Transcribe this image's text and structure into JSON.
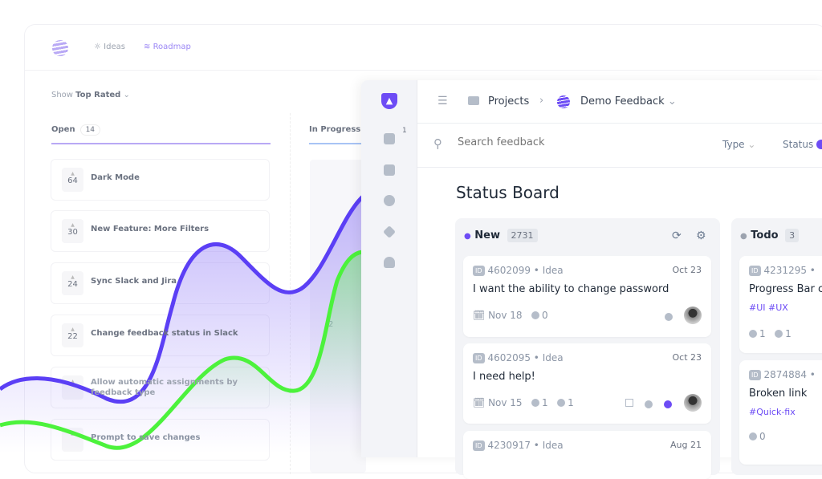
{
  "back_app": {
    "nav": [
      {
        "label": "Ideas",
        "icon": "lightbulb-icon"
      },
      {
        "label": "Roadmap",
        "icon": "roadmap-icon",
        "active": true
      }
    ],
    "show_label": "Show",
    "sort_value": "Top Rated",
    "columns": [
      {
        "label": "Open",
        "count": "14"
      },
      {
        "label": "In Progress"
      }
    ],
    "ideas": [
      {
        "votes": "64",
        "title": "Dark Mode"
      },
      {
        "votes": "30",
        "title": "New Feature: More Filters"
      },
      {
        "votes": "24",
        "title": "Sync Slack and Jira"
      },
      {
        "votes": "22",
        "title": "Change feedback status in Slack"
      },
      {
        "votes": "",
        "title": "Allow automatic assignments by feedback type"
      },
      {
        "votes": "",
        "title": "Prompt to save changes"
      }
    ],
    "in_progress_votes": "2"
  },
  "front_app": {
    "sidebar": {
      "inbox_badge": "1",
      "icons": [
        "logo-icon",
        "inbox-icon",
        "folder-icon",
        "play-icon",
        "layers-icon",
        "user-icon"
      ]
    },
    "breadcrumb": {
      "root": "Projects",
      "project": "Demo Feedback"
    },
    "search": {
      "placeholder": "Search feedback"
    },
    "filters": [
      "Type",
      "Status"
    ],
    "title": "Status Board",
    "columns": [
      {
        "label": "New",
        "count": "2731",
        "dot_color": "#6d4cf5",
        "cards": [
          {
            "id": "4602099",
            "type": "Idea",
            "date": "Oct 23",
            "title": "I want the ability to change password",
            "due": "Nov 18",
            "comments": "0"
          },
          {
            "id": "4602095",
            "type": "Idea",
            "date": "Oct 23",
            "title": "I need help!",
            "due": "Nov 15",
            "comments": "1",
            "votes": "1"
          },
          {
            "id": "4230917",
            "type": "Idea",
            "date": "Aug 21"
          }
        ]
      },
      {
        "label": "Todo",
        "count": "3",
        "dot_color": "#9ca3af",
        "cards": [
          {
            "id": "4231295",
            "title": "Progress Bar c",
            "tags": "#UI  #UX",
            "comments": "1",
            "votes": "1"
          },
          {
            "id": "2874884",
            "title": "Broken link",
            "tags": "#Quick-fix",
            "comments": "0"
          }
        ]
      }
    ]
  },
  "colors": {
    "accent": "#6d4cf5",
    "wave_purple": "#5b3ff5",
    "wave_green": "#4cf23c"
  }
}
